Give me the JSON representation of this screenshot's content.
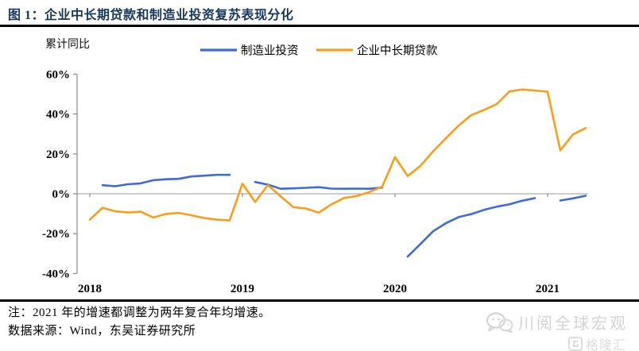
{
  "header": {
    "title": "图 1：企业中长期贷款和制造业投资复苏表现分化"
  },
  "chart": {
    "y_axis_label": "累计同比"
  },
  "chart_data": {
    "type": "line",
    "title": "企业中长期贷款和制造业投资复苏表现分化",
    "ylabel": "累计同比",
    "unit": "%",
    "ylim": [
      -40,
      60
    ],
    "yticks": [
      60,
      40,
      20,
      0,
      -20,
      -40
    ],
    "grid": false,
    "zero_baseline": true,
    "legend_position": "top-center",
    "x_tick_labels": [
      "2018",
      "2019",
      "2020",
      "2021"
    ],
    "x": [
      "2018-01",
      "2018-02",
      "2018-03",
      "2018-04",
      "2018-05",
      "2018-06",
      "2018-07",
      "2018-08",
      "2018-09",
      "2018-10",
      "2018-11",
      "2018-12",
      "2019-01",
      "2019-02",
      "2019-03",
      "2019-04",
      "2019-05",
      "2019-06",
      "2019-07",
      "2019-08",
      "2019-09",
      "2019-10",
      "2019-11",
      "2019-12",
      "2020-01",
      "2020-02",
      "2020-03",
      "2020-04",
      "2020-05",
      "2020-06",
      "2020-07",
      "2020-08",
      "2020-09",
      "2020-10",
      "2020-11",
      "2020-12",
      "2021-01",
      "2021-02",
      "2021-03",
      "2021-04"
    ],
    "series": [
      {
        "name": "制造业投资",
        "color": "#3F6BD8",
        "values": [
          null,
          4.3,
          3.8,
          4.8,
          5.2,
          6.8,
          7.3,
          7.5,
          8.7,
          9.1,
          9.5,
          9.5,
          null,
          5.9,
          4.6,
          2.5,
          2.7,
          3.0,
          3.3,
          2.6,
          2.5,
          2.6,
          2.5,
          3.1,
          null,
          -31.5,
          -25.2,
          -18.8,
          -14.8,
          -11.7,
          -10.2,
          -8.1,
          -6.5,
          -5.3,
          -3.5,
          -2.2,
          null,
          -3.4,
          -2.3,
          -1.0
        ]
      },
      {
        "name": "企业中长期贷款",
        "color": "#F99E1B",
        "values": [
          -13.0,
          -7.0,
          -8.8,
          -9.4,
          -9.0,
          -11.9,
          -10.1,
          -9.6,
          -10.8,
          -12.2,
          -13.0,
          -13.4,
          5.1,
          -4.1,
          4.3,
          -1.2,
          -6.7,
          -7.4,
          -9.5,
          -5.3,
          -2.1,
          -1.1,
          0.9,
          3.6,
          18.4,
          8.9,
          14.0,
          21.3,
          27.8,
          34.2,
          39.5,
          42.0,
          45.0,
          51.3,
          52.3,
          51.8,
          51.2,
          21.8,
          29.8,
          33.0
        ]
      }
    ]
  },
  "footer": {
    "note": "注：2021 年的增速都调整为两年复合年均增速。",
    "source": "数据来源：Wind，东吴证券研究所"
  },
  "watermark": {
    "text": "川阅全球宏观",
    "logo_text": "格隆汇"
  }
}
